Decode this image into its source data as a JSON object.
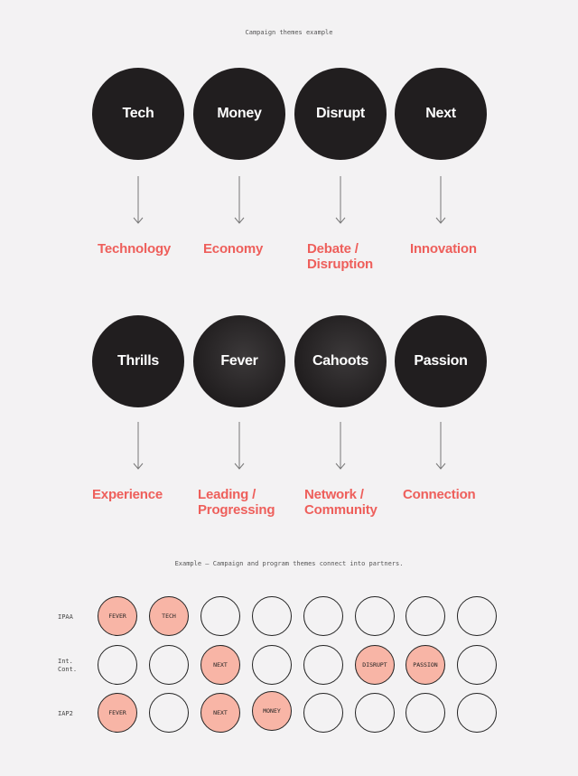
{
  "caption_top": "Campaign themes example",
  "caption_bottom": "Example – Campaign and program themes connect into partners.",
  "theme_rows": [
    {
      "themes": [
        {
          "word": "Tech",
          "meaning": "Technology"
        },
        {
          "word": "Money",
          "meaning": "Economy"
        },
        {
          "word": "Disrupt",
          "meaning": "Debate / Disruption"
        },
        {
          "word": "Next",
          "meaning": "Innovation"
        }
      ]
    },
    {
      "themes": [
        {
          "word": "Thrills",
          "meaning": "Experience"
        },
        {
          "word": "Fever",
          "meaning": "Leading / Progressing"
        },
        {
          "word": "Cahoots",
          "meaning": "Network / Community"
        },
        {
          "word": "Passion",
          "meaning": "Connection"
        }
      ]
    }
  ],
  "partner_rows": [
    {
      "label": "IPAA",
      "slots": [
        "FEVER",
        "TECH",
        "",
        "",
        "",
        "",
        "",
        ""
      ]
    },
    {
      "label": "Int. Cont.",
      "slots": [
        "",
        "",
        "NEXT",
        "",
        "",
        "DISRUPT",
        "PASSION",
        ""
      ]
    },
    {
      "label": "IAP2",
      "slots": [
        "FEVER",
        "",
        "NEXT",
        "MONEY",
        "",
        "",
        "",
        ""
      ]
    }
  ]
}
